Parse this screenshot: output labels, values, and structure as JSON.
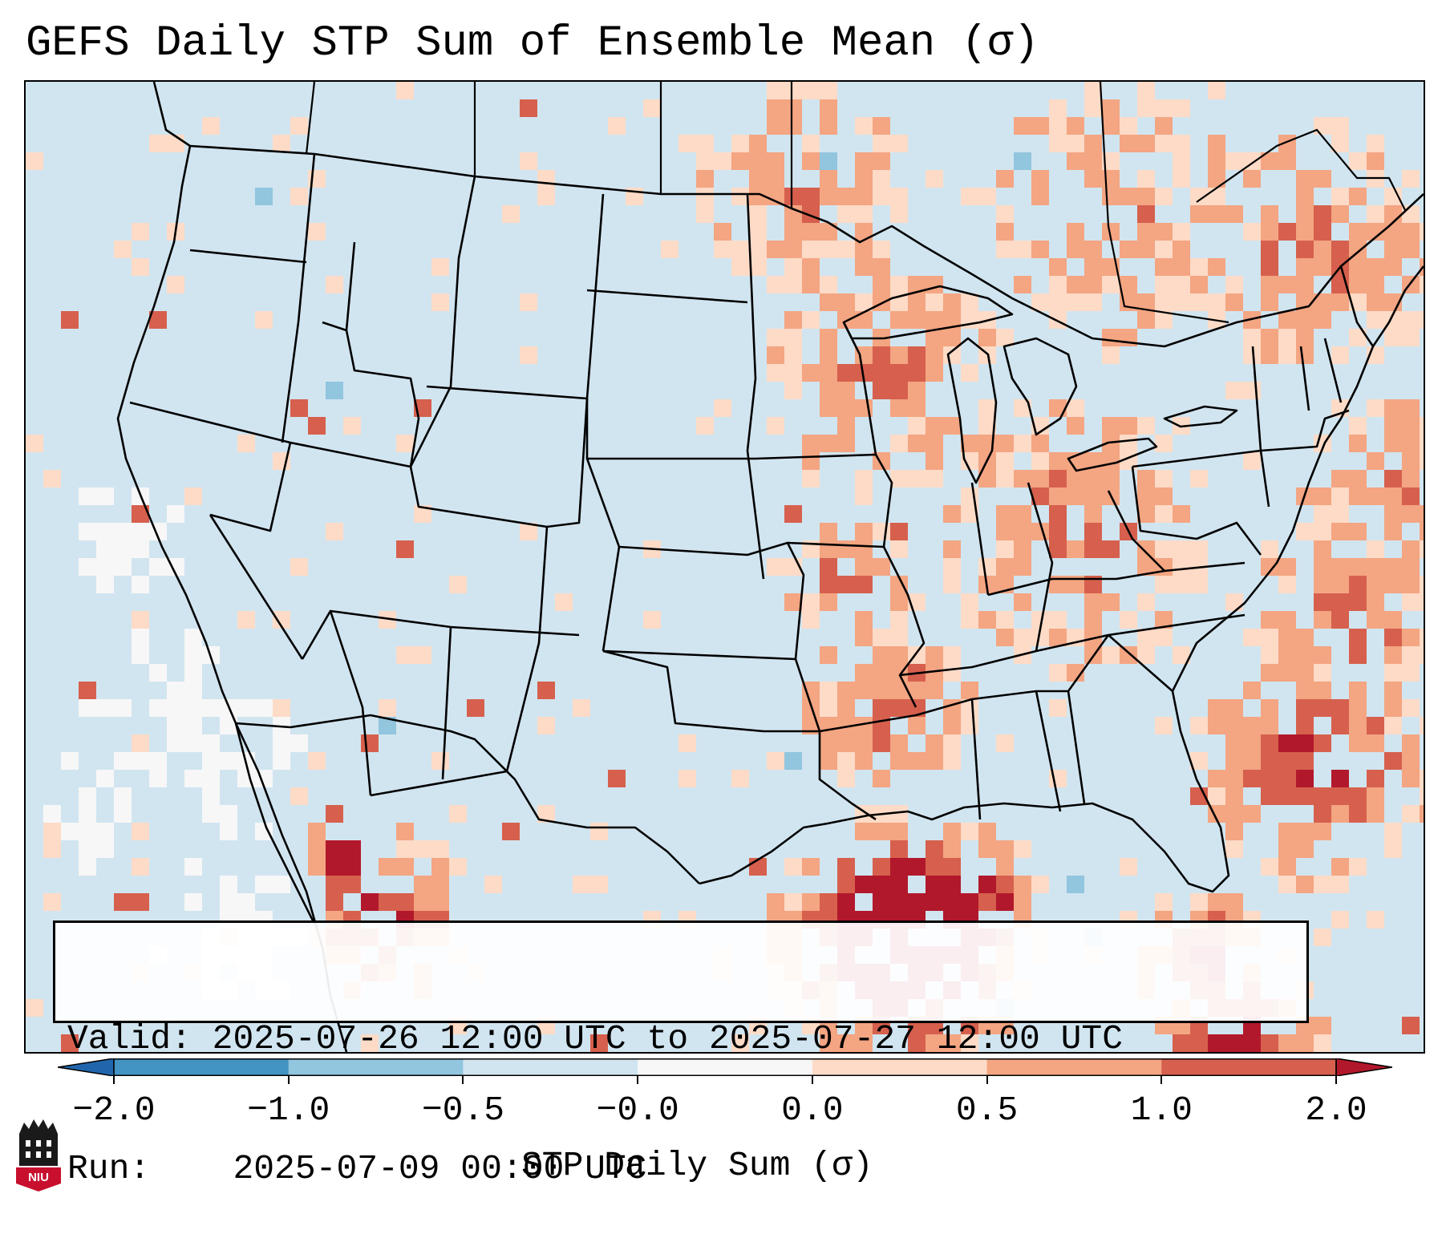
{
  "title": "GEFS Daily STP Sum of Ensemble Mean (σ)",
  "info": {
    "valid_label": "Valid:",
    "valid_value": "2025-07-26 12:00 UTC to 2025-07-27 12:00 UTC",
    "run_label": "Run:",
    "run_value": "2025-07-09 00:00 UTC"
  },
  "colorbar": {
    "label": "STP Daily Sum (σ)",
    "ticks": [
      "−2.0",
      "−1.0",
      "−0.5",
      "−0.0",
      "0.0",
      "0.5",
      "1.0",
      "2.0"
    ],
    "colors": [
      "#2166ac",
      "#4393c3",
      "#92c5de",
      "#d1e5f0",
      "#f7f7f7",
      "#fddbc7",
      "#f4a582",
      "#d6604d",
      "#b2182b"
    ]
  },
  "map": {
    "background_color": "#d1e5f0",
    "region": "Continental United States, southern Canada, northern Mexico, Gulf of Mexico, western Atlantic",
    "anomaly_regions": [
      {
        "name": "Gulf of Mexico coast",
        "level": "≥2.0"
      },
      {
        "name": "Northwest Mexico / Gulf of California",
        "level": "1.0–2.0"
      },
      {
        "name": "Southeast US Atlantic offshore",
        "level": "1.0–2.0"
      },
      {
        "name": "Upper Midwest / Great Lakes",
        "level": "0.5–1.0"
      },
      {
        "name": "Ohio Valley / Mid-Atlantic",
        "level": "0.5–1.0"
      },
      {
        "name": "Pacific offshore of California",
        "level": "−0.0–0.0"
      }
    ]
  },
  "logo": {
    "text": "NIU"
  }
}
